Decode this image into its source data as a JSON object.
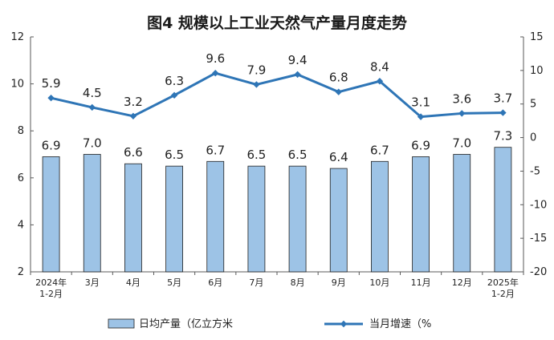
{
  "chart_data": {
    "type": "bar+line",
    "title": "图4  规模以上工业天然气产量月度走势",
    "categories": [
      "2024年\n1-2月",
      "3月",
      "4月",
      "5月",
      "6月",
      "7月",
      "8月",
      "9月",
      "10月",
      "11月",
      "12月",
      "2025年\n1-2月"
    ],
    "series": [
      {
        "name": "日均产量（亿立方米",
        "type": "bar",
        "axis": "left",
        "values": [
          6.9,
          7.0,
          6.6,
          6.5,
          6.7,
          6.5,
          6.5,
          6.4,
          6.7,
          6.9,
          7.0,
          7.3
        ],
        "labels": [
          "6.9",
          "7.0",
          "6.6",
          "6.5",
          "6.7",
          "6.5",
          "6.5",
          "6.4",
          "6.7",
          "6.9",
          "7.0",
          "7.3"
        ]
      },
      {
        "name": "当月增速（%",
        "type": "line",
        "axis": "right",
        "values": [
          5.9,
          4.5,
          3.2,
          6.3,
          9.6,
          7.9,
          9.4,
          6.8,
          8.4,
          3.1,
          3.6,
          3.7
        ],
        "labels": [
          "5.9",
          "4.5",
          "3.2",
          "6.3",
          "9.6",
          "7.9",
          "9.4",
          "6.8",
          "8.4",
          "3.1",
          "3.6",
          "3.7"
        ]
      }
    ],
    "y_left": {
      "min": 2,
      "max": 12,
      "ticks": [
        "2",
        "4",
        "6",
        "8",
        "10",
        "12"
      ]
    },
    "y_right": {
      "min": -20,
      "max": 15,
      "ticks": [
        "-20",
        "-15",
        "-10",
        "-5",
        "0",
        "5",
        "10",
        "15"
      ]
    },
    "grid": false,
    "legend": "bottom",
    "colors": {
      "bar_fill": "#9dc3e6",
      "bar_stroke": "#1f1f1f",
      "line": "#2e75b6",
      "axis": "#595959"
    }
  }
}
